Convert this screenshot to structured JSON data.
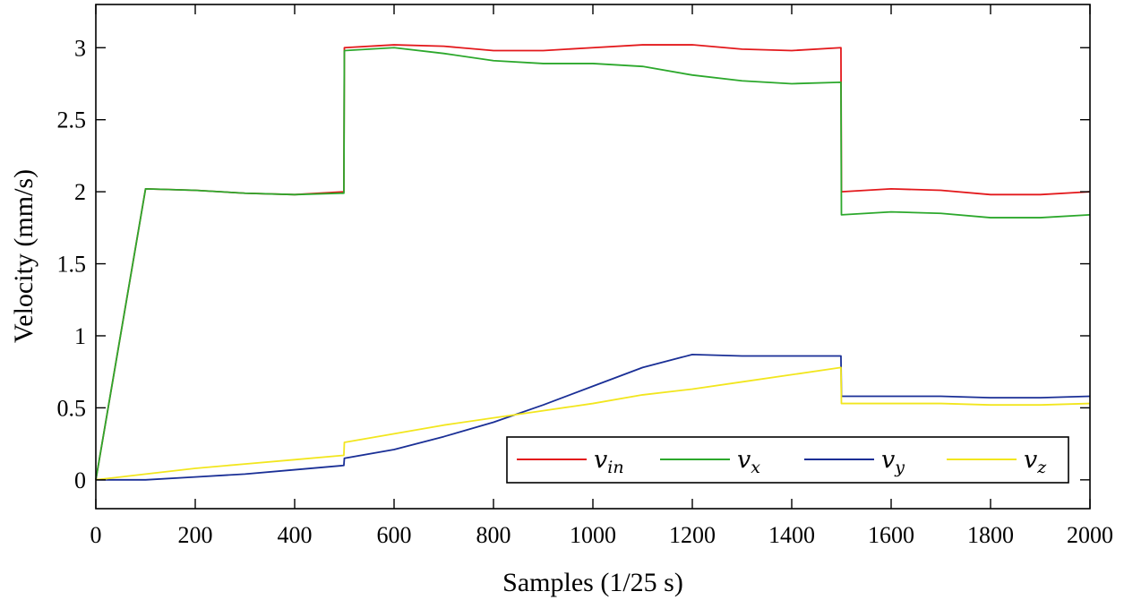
{
  "chart_data": {
    "type": "line",
    "title": "",
    "xlabel": "Samples (1/25 s)",
    "ylabel": "Velocity (mm/s)",
    "xlim": [
      0,
      2000
    ],
    "ylim": [
      -0.2,
      3.3
    ],
    "xticks": [
      0,
      200,
      400,
      600,
      800,
      1000,
      1200,
      1400,
      1600,
      1800,
      2000
    ],
    "xtick_labels": [
      "0",
      "200",
      "400",
      "600",
      "800",
      "1000",
      "1200",
      "1400",
      "1600",
      "1800",
      "2000"
    ],
    "yticks": [
      0,
      0.5,
      1,
      1.5,
      2,
      2.5,
      3
    ],
    "ytick_labels": [
      "0",
      "0.5",
      "1",
      "1.5",
      "2",
      "2.5",
      "3"
    ],
    "grid": false,
    "legend_position": "bottom-right",
    "series": [
      {
        "name": "v_in",
        "base": "v",
        "sub": "in",
        "color": "#e3191c",
        "x": [
          0,
          100,
          200,
          300,
          400,
          499,
          500,
          600,
          700,
          800,
          900,
          1000,
          1100,
          1200,
          1300,
          1400,
          1499,
          1500,
          1600,
          1700,
          1800,
          1900,
          2000
        ],
        "y": [
          0,
          2.02,
          2.01,
          1.99,
          1.98,
          2.0,
          3.0,
          3.02,
          3.01,
          2.98,
          2.98,
          3.0,
          3.02,
          3.02,
          2.99,
          2.98,
          3.0,
          2.0,
          2.02,
          2.01,
          1.98,
          1.98,
          2.0
        ]
      },
      {
        "name": "v_x",
        "base": "v",
        "sub": "x",
        "color": "#2ca82c",
        "x": [
          0,
          100,
          200,
          300,
          400,
          499,
          500,
          600,
          700,
          800,
          900,
          1000,
          1100,
          1200,
          1300,
          1400,
          1499,
          1500,
          1600,
          1700,
          1800,
          1900,
          2000
        ],
        "y": [
          0,
          2.02,
          2.01,
          1.99,
          1.98,
          1.99,
          2.98,
          3.0,
          2.96,
          2.91,
          2.89,
          2.89,
          2.87,
          2.81,
          2.77,
          2.75,
          2.76,
          1.84,
          1.86,
          1.85,
          1.82,
          1.82,
          1.84
        ]
      },
      {
        "name": "v_y",
        "base": "v",
        "sub": "y",
        "color": "#1a2f96",
        "x": [
          0,
          100,
          200,
          300,
          400,
          499,
          500,
          600,
          700,
          800,
          900,
          1000,
          1100,
          1200,
          1300,
          1400,
          1499,
          1500,
          1600,
          1700,
          1800,
          1900,
          2000
        ],
        "y": [
          0,
          0.0,
          0.02,
          0.04,
          0.07,
          0.1,
          0.15,
          0.21,
          0.3,
          0.4,
          0.52,
          0.65,
          0.78,
          0.87,
          0.86,
          0.86,
          0.86,
          0.58,
          0.58,
          0.58,
          0.57,
          0.57,
          0.58
        ]
      },
      {
        "name": "v_z",
        "base": "v",
        "sub": "z",
        "color": "#f2e61e",
        "x": [
          0,
          100,
          200,
          300,
          400,
          499,
          500,
          600,
          700,
          800,
          900,
          1000,
          1100,
          1200,
          1300,
          1400,
          1499,
          1500,
          1600,
          1700,
          1800,
          1900,
          2000
        ],
        "y": [
          0,
          0.04,
          0.08,
          0.11,
          0.14,
          0.17,
          0.26,
          0.32,
          0.38,
          0.43,
          0.48,
          0.53,
          0.59,
          0.63,
          0.68,
          0.73,
          0.78,
          0.53,
          0.53,
          0.53,
          0.52,
          0.52,
          0.53
        ]
      }
    ]
  }
}
